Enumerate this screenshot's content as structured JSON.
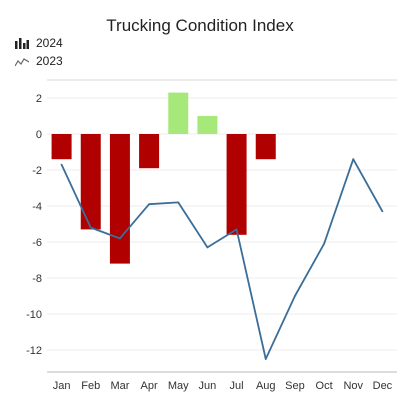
{
  "chart_data": {
    "type": "bar",
    "title": "Trucking Condition Index",
    "categories": [
      "Jan",
      "Feb",
      "Mar",
      "Apr",
      "May",
      "Jun",
      "Jul",
      "Aug",
      "Sep",
      "Oct",
      "Nov",
      "Dec"
    ],
    "ylim": [
      -13,
      3
    ],
    "yticks": [
      2,
      0,
      -2,
      -4,
      -6,
      -8,
      -10,
      -12
    ],
    "grid": true,
    "legend_position": "top-left",
    "series": [
      {
        "name": "2024",
        "type": "bar",
        "values": [
          -1.4,
          -5.3,
          -7.2,
          -1.9,
          2.3,
          1.0,
          -5.6,
          -1.4,
          null,
          null,
          null,
          null
        ],
        "positive_color": "#a6e97a",
        "negative_color": "#b10000"
      },
      {
        "name": "2023",
        "type": "line",
        "values": [
          -1.7,
          -5.2,
          -5.8,
          -3.9,
          -3.8,
          -6.3,
          -5.3,
          -12.5,
          -9.0,
          -6.1,
          -1.4,
          -4.3
        ],
        "color": "#3a6e99"
      }
    ]
  }
}
